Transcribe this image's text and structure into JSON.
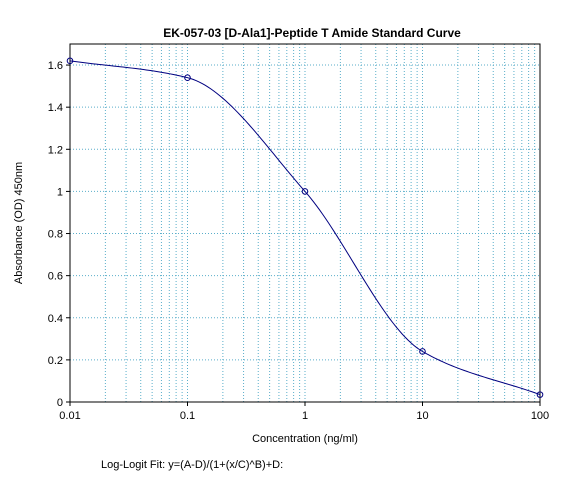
{
  "chart_data": {
    "type": "scatter",
    "title": "EK-057-03 [D-Ala1]-Peptide T Amide Standard Curve",
    "xlabel": "Concentration (ng/ml)",
    "ylabel": "Absorbance (OD) 450nm",
    "x_scale": "log",
    "xlim": [
      0.01,
      100
    ],
    "ylim": [
      0,
      1.7
    ],
    "x_ticks": [
      "0.01",
      "0.1",
      "1",
      "10",
      "100"
    ],
    "y_ticks": [
      "0",
      "0.2",
      "0.4",
      "0.6",
      "0.8",
      "1",
      "1.2",
      "1.4",
      "1.6"
    ],
    "grid": true,
    "series": [
      {
        "x": [
          0.01,
          0.1,
          1,
          10,
          100
        ],
        "y": [
          1.62,
          1.54,
          1.0,
          0.24,
          0.035
        ]
      }
    ],
    "fit": {
      "label": "Log-Logit Fit: y=(A-D)/(1+(x/C)^B)+D:",
      "curve_color": "#000080"
    },
    "colors": {
      "grid": "#5aaeca",
      "curve": "#000080",
      "axis": "#000000"
    }
  }
}
